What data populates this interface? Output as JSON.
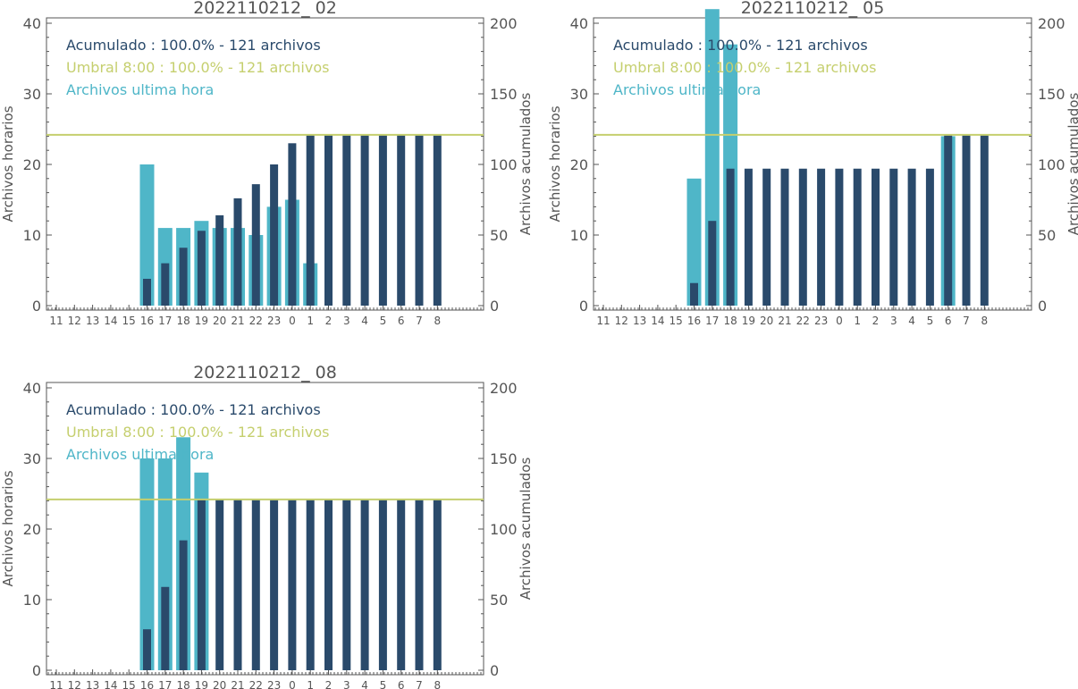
{
  "colors": {
    "hourly": "#4fb6c8",
    "cumulative": "#2a4a6b",
    "threshold": "#c5cf6e",
    "axis": "#555555",
    "text": "#555555"
  },
  "chart_data": [
    {
      "type": "bar",
      "title": "2022110212_ 02",
      "ylabel": "Archivos horarios",
      "ylabel_right": "Archivos acumulados",
      "ylim": [
        0,
        40
      ],
      "ylim_right": [
        0,
        200
      ],
      "yticks": [
        "0",
        "10",
        "20",
        "30",
        "40"
      ],
      "yticks_right": [
        "0",
        "50",
        "100",
        "150",
        "200"
      ],
      "categories": [
        "11",
        "12",
        "13",
        "14",
        "15",
        "16",
        "17",
        "18",
        "19",
        "20",
        "21",
        "22",
        "23",
        "0",
        "1",
        "2",
        "3",
        "4",
        "5",
        "6",
        "7",
        "8"
      ],
      "legend": [
        "Acumulado : 100.0% - 121 archivos",
        "Umbral 8:00 : 100.0% - 121 archivos",
        "Archivos ultima hora"
      ],
      "threshold_right": 121,
      "series": [
        {
          "name": "Archivos ultima hora",
          "axis": "left",
          "values": [
            0,
            0,
            0,
            0,
            0,
            20,
            11,
            11,
            12,
            11,
            11,
            10,
            14,
            15,
            6,
            0,
            0,
            0,
            0,
            0,
            0,
            0
          ]
        },
        {
          "name": "Acumulado",
          "axis": "right",
          "values": [
            0,
            0,
            0,
            0,
            0,
            19,
            30,
            41,
            53,
            64,
            76,
            86,
            100,
            115,
            121,
            121,
            121,
            121,
            121,
            121,
            121,
            121
          ]
        }
      ]
    },
    {
      "type": "bar",
      "title": "2022110212_ 05",
      "ylabel": "Archivos horarios",
      "ylabel_right": "Archivos acumulados",
      "ylim": [
        0,
        40
      ],
      "ylim_right": [
        0,
        200
      ],
      "yticks": [
        "0",
        "10",
        "20",
        "30",
        "40"
      ],
      "yticks_right": [
        "0",
        "50",
        "100",
        "150",
        "200"
      ],
      "categories": [
        "11",
        "12",
        "13",
        "14",
        "15",
        "16",
        "17",
        "18",
        "19",
        "20",
        "21",
        "22",
        "23",
        "0",
        "1",
        "2",
        "3",
        "4",
        "5",
        "6",
        "7",
        "8"
      ],
      "legend": [
        "Acumulado : 100.0% - 121 archivos",
        "Umbral 8:00 : 100.0% - 121 archivos",
        "Archivos ultima hora"
      ],
      "threshold_right": 121,
      "series": [
        {
          "name": "Archivos ultima hora",
          "axis": "left",
          "values": [
            0,
            0,
            0,
            0,
            0,
            18,
            42,
            37,
            0,
            0,
            0,
            0,
            0,
            0,
            0,
            0,
            0,
            0,
            0,
            24,
            0,
            0
          ]
        },
        {
          "name": "Acumulado",
          "axis": "right",
          "values": [
            0,
            0,
            0,
            0,
            0,
            16,
            60,
            97,
            97,
            97,
            97,
            97,
            97,
            97,
            97,
            97,
            97,
            97,
            97,
            121,
            121,
            121
          ]
        }
      ]
    },
    {
      "type": "bar",
      "title": "2022110212_ 08",
      "ylabel": "Archivos horarios",
      "ylabel_right": "Archivos acumulados",
      "ylim": [
        0,
        40
      ],
      "ylim_right": [
        0,
        200
      ],
      "yticks": [
        "0",
        "10",
        "20",
        "30",
        "40"
      ],
      "yticks_right": [
        "0",
        "50",
        "100",
        "150",
        "200"
      ],
      "categories": [
        "11",
        "12",
        "13",
        "14",
        "15",
        "16",
        "17",
        "18",
        "19",
        "20",
        "21",
        "22",
        "23",
        "0",
        "1",
        "2",
        "3",
        "4",
        "5",
        "6",
        "7",
        "8"
      ],
      "legend": [
        "Acumulado : 100.0% - 121 archivos",
        "Umbral 8:00 : 100.0% - 121 archivos",
        "Archivos ultima hora"
      ],
      "threshold_right": 121,
      "series": [
        {
          "name": "Archivos ultima hora",
          "axis": "left",
          "values": [
            0,
            0,
            0,
            0,
            0,
            30,
            30,
            33,
            28,
            0,
            0,
            0,
            0,
            0,
            0,
            0,
            0,
            0,
            0,
            0,
            0,
            0
          ]
        },
        {
          "name": "Acumulado",
          "axis": "right",
          "values": [
            0,
            0,
            0,
            0,
            0,
            29,
            59,
            92,
            121,
            121,
            121,
            121,
            121,
            121,
            121,
            121,
            121,
            121,
            121,
            121,
            121,
            121
          ]
        }
      ]
    }
  ]
}
